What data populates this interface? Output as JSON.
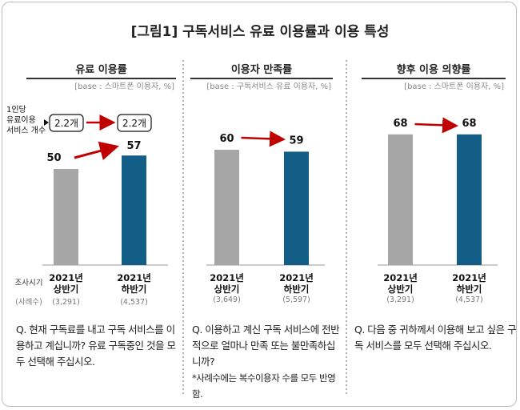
{
  "title": "[그림1] 구독서비스 유료 이용률과 이용 특성",
  "row_labels": {
    "period": "조사시기",
    "cases": "(사례수)"
  },
  "per_person_label": [
    "1인당",
    "유료이용",
    "서비스 개수"
  ],
  "per_person_values": [
    "2.2개",
    "2.2개"
  ],
  "colors": {
    "first_half": "#a6a6a6",
    "second_half": "#135e87",
    "arrow": "#c00000"
  },
  "chart_data": [
    {
      "type": "bar",
      "title": "유료 이용률",
      "base": "[base : 스마트폰 이용자, %]",
      "categories": [
        [
          "2021년",
          "상반기"
        ],
        [
          "2021년",
          "하반기"
        ]
      ],
      "cases": [
        "(3,291)",
        "(4,537)"
      ],
      "values": [
        50,
        57
      ],
      "ylim": [
        0,
        100
      ],
      "question": "Q. 현재 구독료를 내고 구독 서비스를 이용하고 계십니까? 유료 구독중인 것을 모두 선택해 주십시오.",
      "note": ""
    },
    {
      "type": "bar",
      "title": "이용자 만족률",
      "base": "[base : 구독서비스 유료 이용자, %]",
      "categories": [
        [
          "2021년",
          "상반기"
        ],
        [
          "2021년",
          "하반기"
        ]
      ],
      "cases": [
        "(3,649)",
        "(5,597)"
      ],
      "values": [
        60,
        59
      ],
      "ylim": [
        0,
        100
      ],
      "question": "Q. 이용하고 계신 구독 서비스에 전반적으로 얼마나 만족 또는 불만족하십니까?",
      "note": "*사례수에는 복수이용자 수를 모두 반영함."
    },
    {
      "type": "bar",
      "title": "향후 이용 의향률",
      "base": "[base : 스마트폰 이용자, %]",
      "categories": [
        [
          "2021년",
          "상반기"
        ],
        [
          "2021년",
          "하반기"
        ]
      ],
      "cases": [
        "(3,291)",
        "(4,537)"
      ],
      "values": [
        68,
        68
      ],
      "ylim": [
        0,
        100
      ],
      "question": "Q. 다음 중 귀하께서 이용해 보고 싶은 구독 서비스를 모두 선택해 주십시오.",
      "note": ""
    }
  ]
}
